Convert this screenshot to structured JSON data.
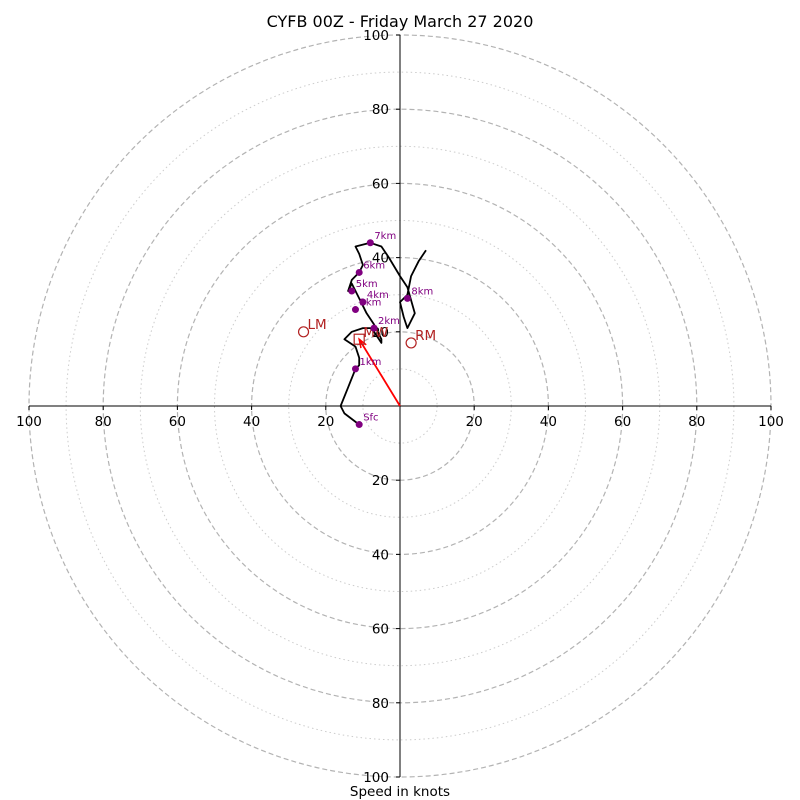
{
  "chart_data": {
    "type": "hodograph",
    "title": "CYFB 00Z - Friday March 27 2020",
    "xlabel": "Speed in knots",
    "rings": [
      20,
      40,
      60,
      80,
      100
    ],
    "minor_rings": [
      10,
      30,
      50,
      70,
      90
    ],
    "axis_range": [
      -100,
      100
    ],
    "tick_labels": {
      "left": [
        "100",
        "80",
        "60",
        "40",
        "20"
      ],
      "right": [
        "20",
        "40",
        "60",
        "80",
        "100"
      ],
      "up": [
        "20",
        "40",
        "60",
        "80",
        "100"
      ],
      "down": [
        "20",
        "40",
        "60",
        "80",
        "100"
      ]
    },
    "tick_values": [
      20,
      40,
      60,
      80,
      100
    ],
    "wind_trace": [
      [
        -11,
        -5
      ],
      [
        -15,
        -2
      ],
      [
        -16,
        0
      ],
      [
        -14,
        5
      ],
      [
        -12,
        10
      ],
      [
        -11,
        11
      ],
      [
        -11,
        13
      ],
      [
        -12,
        16
      ],
      [
        -15,
        18
      ],
      [
        -13,
        20
      ],
      [
        -10,
        21
      ],
      [
        -8,
        21
      ],
      [
        -7,
        20
      ],
      [
        -5,
        17
      ],
      [
        -5,
        18
      ],
      [
        -6,
        20
      ],
      [
        -7,
        22
      ],
      [
        -9,
        25
      ],
      [
        -10,
        27
      ],
      [
        -11,
        29
      ],
      [
        -12,
        31
      ],
      [
        -13,
        33
      ],
      [
        -14,
        31
      ],
      [
        -13,
        34
      ],
      [
        -11,
        36
      ],
      [
        -10,
        38
      ],
      [
        -11,
        41
      ],
      [
        -12,
        43
      ],
      [
        -8,
        44
      ],
      [
        -5,
        43
      ],
      [
        -3,
        40
      ],
      [
        0,
        35
      ],
      [
        2,
        32
      ],
      [
        4,
        25
      ],
      [
        2,
        21
      ],
      [
        1,
        24
      ],
      [
        0,
        28
      ],
      [
        2,
        30
      ],
      [
        3,
        35
      ],
      [
        5,
        39
      ],
      [
        7,
        42
      ]
    ],
    "height_markers": [
      {
        "label": "Sfc",
        "u": -11,
        "v": -5
      },
      {
        "label": "1km",
        "u": -12,
        "v": 10
      },
      {
        "label": "2km",
        "u": -7,
        "v": 21
      },
      {
        "label": "3km",
        "u": -12,
        "v": 26
      },
      {
        "label": "4km",
        "u": -10,
        "v": 28
      },
      {
        "label": "5km",
        "u": -13,
        "v": 31
      },
      {
        "label": "6km",
        "u": -11,
        "v": 36
      },
      {
        "label": "7km",
        "u": -8,
        "v": 44
      },
      {
        "label": "8km",
        "u": 2,
        "v": 29
      }
    ],
    "storm_motion": {
      "vector": {
        "u": -11,
        "v": 18
      },
      "points": [
        {
          "label": "LM",
          "u": -26,
          "v": 20
        },
        {
          "label": "RM",
          "u": 3,
          "v": 17
        },
        {
          "label": "MW",
          "u": -11,
          "v": 18
        }
      ]
    },
    "colors": {
      "ring": "#b3b3b3",
      "minor_ring": "#cccccc",
      "axis": "#000000",
      "trace": "#000000",
      "marker": "#800080",
      "storm": "#b22222",
      "vector": "#ff0000"
    }
  }
}
